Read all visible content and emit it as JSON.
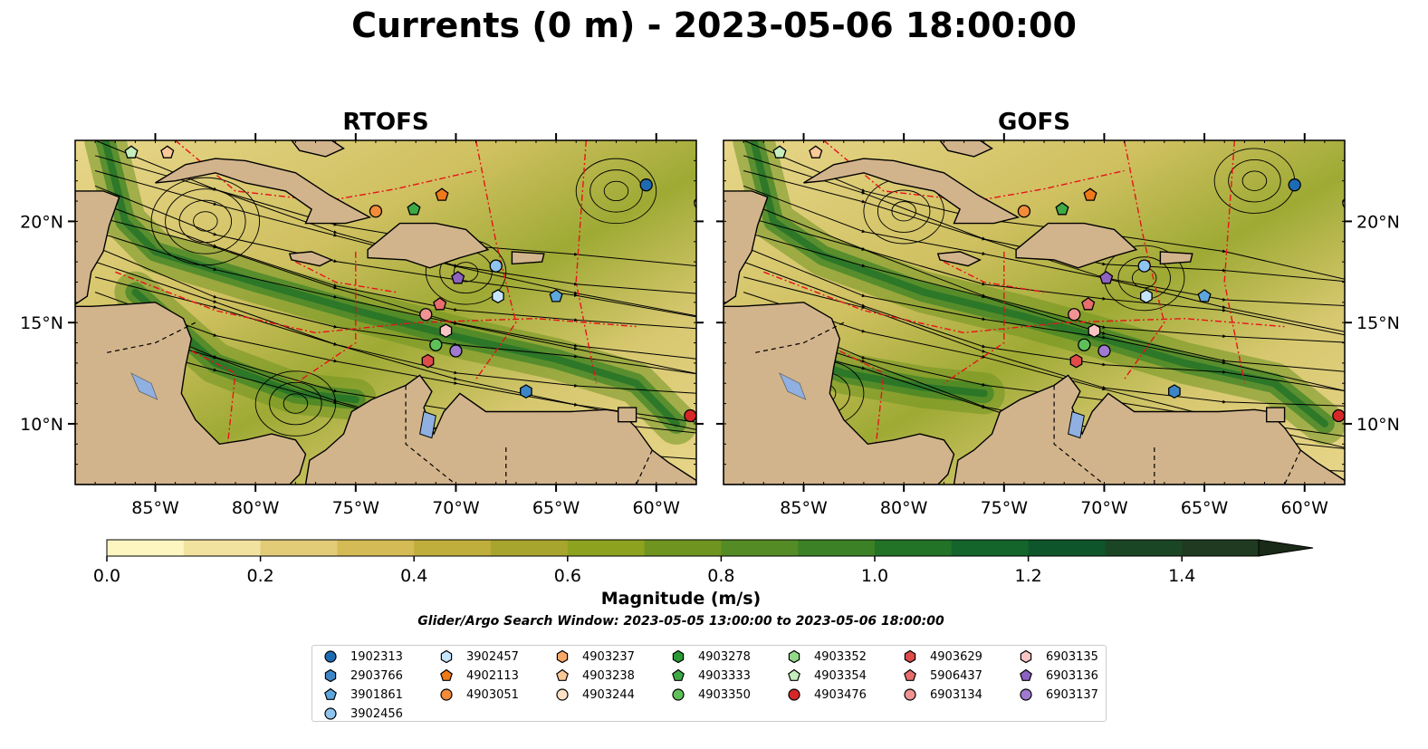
{
  "title": "Currents (0 m) - 2023-05-06 18:00:00",
  "panels": [
    {
      "title": "RTOFS"
    },
    {
      "title": "GOFS"
    }
  ],
  "axes": {
    "x_ticks": [
      "85°W",
      "80°W",
      "75°W",
      "70°W",
      "65°W",
      "60°W"
    ],
    "x_tick_values": [
      -85,
      -80,
      -75,
      -70,
      -65,
      -60
    ],
    "y_ticks": [
      "20°N",
      "15°N",
      "10°N"
    ],
    "y_tick_values": [
      20,
      15,
      10
    ],
    "lon_range": [
      -89,
      -58
    ],
    "lat_range": [
      7,
      24
    ]
  },
  "colorbar": {
    "label": "Magnitude (m/s)",
    "tick_labels": [
      "0.0",
      "0.2",
      "0.4",
      "0.6",
      "0.8",
      "1.0",
      "1.2",
      "1.4"
    ],
    "tick_values": [
      0.0,
      0.2,
      0.4,
      0.6,
      0.8,
      1.0,
      1.2,
      1.4
    ],
    "range": [
      0.0,
      1.5
    ],
    "colors": [
      "#fdf6c0",
      "#f1e2a0",
      "#e2cc78",
      "#d4bb55",
      "#bfae3c",
      "#a8a52e",
      "#8da21f",
      "#6f9420",
      "#548b25",
      "#3c8125",
      "#227228",
      "#13652c",
      "#0f552b",
      "#1a4626",
      "#1f3a20"
    ]
  },
  "colors": {
    "land": "#d2b48c",
    "ocean_low": "#fdf6c0",
    "ocean_mid": "#8da21f",
    "ocean_high": "#13652c",
    "eez_line": "#e8121a",
    "lake": "#8fb0e0"
  },
  "search_window": "Glider/Argo Search Window: 2023-05-05 13:00:00 to 2023-05-06 18:00:00",
  "legend": {
    "columns": [
      [
        {
          "id": "1902313",
          "shape": "circle",
          "color": "#1f6bb3"
        },
        {
          "id": "2903766",
          "shape": "hexagon",
          "color": "#3d86c6"
        },
        {
          "id": "3901861",
          "shape": "pentagon",
          "color": "#5ea6de"
        },
        {
          "id": "3902456",
          "shape": "circle",
          "color": "#8ec4ee"
        }
      ],
      [
        {
          "id": "3902457",
          "shape": "hexagon",
          "color": "#c6e4fb"
        },
        {
          "id": "4902113",
          "shape": "pentagon",
          "color": "#ef7a1a"
        },
        {
          "id": "4903051",
          "shape": "circle",
          "color": "#f28c3a"
        }
      ],
      [
        {
          "id": "4903237",
          "shape": "hexagon",
          "color": "#f7a868"
        },
        {
          "id": "4903238",
          "shape": "pentagon",
          "color": "#fbc898"
        },
        {
          "id": "4903244",
          "shape": "circle",
          "color": "#fde0c6"
        }
      ],
      [
        {
          "id": "4903278",
          "shape": "hexagon",
          "color": "#2a9a36"
        },
        {
          "id": "4903333",
          "shape": "pentagon",
          "color": "#3eaa45"
        },
        {
          "id": "4903350",
          "shape": "circle",
          "color": "#5fc05a"
        }
      ],
      [
        {
          "id": "4903352",
          "shape": "hexagon",
          "color": "#93d98a"
        },
        {
          "id": "4903354",
          "shape": "pentagon",
          "color": "#c6edbd"
        },
        {
          "id": "4903476",
          "shape": "circle",
          "color": "#d62728"
        }
      ],
      [
        {
          "id": "4903629",
          "shape": "hexagon",
          "color": "#df4a4a"
        },
        {
          "id": "5906437",
          "shape": "pentagon",
          "color": "#e86d6d"
        },
        {
          "id": "6903134",
          "shape": "circle",
          "color": "#f09393"
        }
      ],
      [
        {
          "id": "6903135",
          "shape": "hexagon",
          "color": "#f8c4c4"
        },
        {
          "id": "6903136",
          "shape": "pentagon",
          "color": "#8e62c0"
        },
        {
          "id": "6903137",
          "shape": "circle",
          "color": "#a07ad0"
        }
      ]
    ]
  },
  "floats": [
    {
      "id": "1902313",
      "lon": -60.5,
      "lat": 21.8
    },
    {
      "id": "3901861",
      "lon": -65.0,
      "lat": 16.3
    },
    {
      "id": "3902456",
      "lon": -68.0,
      "lat": 17.8
    },
    {
      "id": "3902457",
      "lon": -67.9,
      "lat": 16.3
    },
    {
      "id": "4902113",
      "lon": -70.7,
      "lat": 21.3
    },
    {
      "id": "4903051",
      "lon": -74.0,
      "lat": 20.5
    },
    {
      "id": "4903238",
      "lon": -84.4,
      "lat": 23.4
    },
    {
      "id": "4903244",
      "lon": -57.8,
      "lat": 20.9
    },
    {
      "id": "4903333",
      "lon": -72.1,
      "lat": 20.6
    },
    {
      "id": "4903350",
      "lon": -71.0,
      "lat": 13.9
    },
    {
      "id": "4903354",
      "lon": -86.2,
      "lat": 23.4
    },
    {
      "id": "4903476",
      "lon": -58.3,
      "lat": 10.4
    },
    {
      "id": "4903629",
      "lon": -71.4,
      "lat": 13.1
    },
    {
      "id": "5906437",
      "lon": -70.8,
      "lat": 15.9
    },
    {
      "id": "6903134",
      "lon": -71.5,
      "lat": 15.4
    },
    {
      "id": "6903135",
      "lon": -70.5,
      "lat": 14.6
    },
    {
      "id": "6903136",
      "lon": -69.9,
      "lat": 17.2
    },
    {
      "id": "6903137",
      "lon": -70.0,
      "lat": 13.6
    },
    {
      "id": "2903766",
      "lon": -66.5,
      "lat": 11.6
    }
  ]
}
